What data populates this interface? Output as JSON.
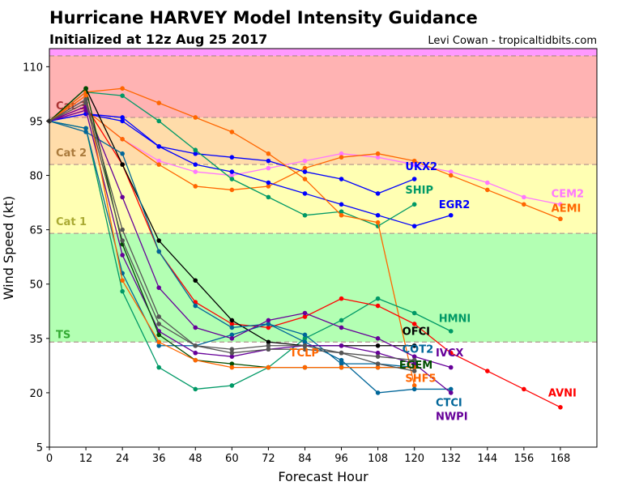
{
  "chart_data": {
    "type": "line",
    "title": "Hurricane HARVEY Model Intensity Guidance",
    "subtitle": "Initialized at 12z Aug 25 2017",
    "credit": "Levi Cowan - tropicaltidbits.com",
    "xlabel": "Forecast Hour",
    "ylabel": "Wind Speed (kt)",
    "xlim": [
      0,
      180
    ],
    "ylim": [
      5,
      115
    ],
    "xticks": [
      0,
      12,
      24,
      36,
      48,
      60,
      72,
      84,
      96,
      108,
      120,
      132,
      144,
      156,
      168
    ],
    "yticks": [
      5,
      20,
      35,
      50,
      65,
      80,
      95,
      110
    ],
    "grid": false,
    "bands": [
      {
        "label": "",
        "from": 113,
        "to": 115,
        "color": "#ff99ff",
        "label_color": "#993399"
      },
      {
        "label": "Cat 3",
        "from": 96,
        "to": 113,
        "color": "#ffb3b3",
        "label_color": "#aa3333"
      },
      {
        "label": "Cat 2",
        "from": 83,
        "to": 96,
        "color": "#ffdcaa",
        "label_color": "#aa7a3c"
      },
      {
        "label": "Cat 1",
        "from": 64,
        "to": 83,
        "color": "#ffffb3",
        "label_color": "#aaaa33"
      },
      {
        "label": "TS",
        "from": 34,
        "to": 64,
        "color": "#b3ffb3",
        "label_color": "#33aa33"
      }
    ],
    "series": [
      {
        "name": "CEM2",
        "color": "#ff77ff",
        "x": [
          0,
          12,
          24,
          36,
          48,
          60,
          72,
          84,
          96,
          108,
          120,
          132,
          144,
          156,
          168
        ],
        "y": [
          95,
          98,
          90,
          84,
          81,
          80,
          82,
          84,
          86,
          85,
          83,
          81,
          78,
          74,
          72
        ],
        "label_at": [
          165,
          74
        ]
      },
      {
        "name": "AEMI",
        "color": "#ff6600",
        "x": [
          0,
          12,
          24,
          36,
          48,
          60,
          72,
          84,
          96,
          108,
          120,
          132,
          144,
          156,
          168
        ],
        "y": [
          95,
          98,
          90,
          83,
          77,
          76,
          77,
          82,
          85,
          86,
          84,
          80,
          76,
          72,
          68
        ],
        "label_at": [
          165,
          70
        ]
      },
      {
        "name": "UKX2",
        "color": "#0000ff",
        "x": [
          0,
          12,
          24,
          36,
          48,
          60,
          72,
          84,
          96,
          108,
          120
        ],
        "y": [
          95,
          97,
          96,
          88,
          86,
          85,
          84,
          81,
          79,
          75,
          79
        ],
        "label_at": [
          117,
          81.5
        ]
      },
      {
        "name": "EGR2",
        "color": "#0000ff",
        "x": [
          0,
          12,
          24,
          36,
          48,
          60,
          72,
          84,
          96,
          108,
          120,
          132
        ],
        "y": [
          95,
          97,
          95,
          88,
          83,
          81,
          78,
          75,
          72,
          69,
          66,
          69
        ],
        "label_at": [
          128,
          71
        ]
      },
      {
        "name": "SHIP",
        "color": "#009966",
        "x": [
          0,
          12,
          24,
          36,
          48,
          60,
          72,
          84,
          96,
          108,
          120
        ],
        "y": [
          95,
          103,
          102,
          95,
          87,
          79,
          74,
          69,
          70,
          66,
          72
        ],
        "label_at": [
          117,
          75
        ]
      },
      {
        "name": "SHF5",
        "color": "#ff6600",
        "x": [
          0,
          12,
          24,
          36,
          48,
          60,
          72,
          84,
          96,
          108,
          120
        ],
        "y": [
          95,
          103,
          104,
          100,
          96,
          92,
          86,
          79,
          69,
          67,
          22
        ],
        "label_at": [
          117,
          23
        ]
      },
      {
        "name": "HMNI",
        "color": "#009966",
        "x": [
          0,
          12,
          24,
          36,
          48,
          60,
          72,
          84,
          96,
          108,
          120,
          132
        ],
        "y": [
          95,
          93,
          48,
          27,
          21,
          22,
          27,
          35,
          40,
          46,
          42,
          37
        ],
        "label_at": [
          128,
          39.5
        ]
      },
      {
        "name": "AVNI",
        "color": "#ff0000",
        "x": [
          0,
          12,
          24,
          36,
          48,
          60,
          72,
          84,
          96,
          108,
          120,
          132,
          144,
          156,
          168
        ],
        "y": [
          95,
          99,
          83,
          59,
          45,
          39,
          38,
          41,
          46,
          44,
          39,
          31,
          26,
          21,
          16
        ],
        "label_at": [
          164,
          19
        ]
      },
      {
        "name": "OFCI",
        "color": "#000000",
        "x": [
          0,
          12,
          24,
          36,
          48,
          60,
          72,
          84,
          96,
          108,
          120
        ],
        "y": [
          95,
          104,
          83,
          62,
          51,
          40,
          34,
          33,
          33,
          33,
          33
        ],
        "label_at": [
          116,
          36
        ]
      },
      {
        "name": "CTCI",
        "color": "#006699",
        "x": [
          0,
          12,
          24,
          36,
          48,
          60,
          72,
          84,
          96,
          108,
          120,
          132
        ],
        "y": [
          95,
          92,
          86,
          59,
          44,
          38,
          39,
          34,
          29,
          20,
          21,
          21
        ],
        "label_at": [
          127,
          23
        ]
      },
      {
        "name": "COT2",
        "color": "#006699",
        "x": [
          0,
          12,
          24,
          36,
          48,
          60,
          72,
          84,
          96,
          108,
          120
        ],
        "y": [
          95,
          93,
          53,
          33,
          33,
          36,
          39,
          36,
          28,
          28,
          27
        ],
        "label_at": [
          116,
          31
        ]
      },
      {
        "name": "IVCX",
        "color": "#660099",
        "x": [
          0,
          12,
          24,
          36,
          48,
          60,
          72,
          84,
          96,
          108,
          120,
          132
        ],
        "y": [
          95,
          99,
          74,
          49,
          38,
          35,
          40,
          42,
          38,
          35,
          30,
          27
        ],
        "label_at": [
          127,
          30
        ]
      },
      {
        "name": "NWPI",
        "color": "#660099",
        "x": [
          0,
          12,
          24,
          36,
          48,
          60,
          72,
          84,
          96,
          108,
          120,
          132
        ],
        "y": [
          95,
          98,
          58,
          37,
          31,
          30,
          32,
          33,
          33,
          31,
          28,
          20
        ],
        "label_at": [
          127,
          22.5
        ]
      },
      {
        "name": "EGEM",
        "color": "#004d00",
        "x": [
          0,
          12,
          24,
          36,
          48,
          60,
          72,
          84,
          96,
          108,
          120
        ],
        "y": [
          95,
          104,
          61,
          36,
          29,
          28,
          27,
          27,
          27,
          27,
          27
        ],
        "label_at": [
          115,
          30
        ]
      },
      {
        "name": "TCLP",
        "color": "#ff6600",
        "x": [
          0,
          12,
          24,
          36,
          48,
          60,
          72,
          84,
          96,
          108,
          120
        ],
        "y": [
          95,
          102,
          51,
          34,
          29,
          27,
          27,
          27,
          27,
          27,
          27
        ],
        "label_at": [
          79,
          30
        ]
      },
      {
        "name": "",
        "color": "#555555",
        "x": [
          0,
          12,
          24,
          36,
          48,
          60,
          72,
          84,
          96,
          108,
          120
        ],
        "y": [
          95,
          101,
          65,
          41,
          33,
          32,
          33,
          33,
          31,
          30,
          29
        ]
      },
      {
        "name": "",
        "color": "#555555",
        "x": [
          0,
          12,
          24,
          36,
          48,
          60,
          72,
          84,
          96,
          108,
          120
        ],
        "y": [
          95,
          100,
          62,
          39,
          33,
          31,
          32,
          32,
          31,
          28,
          26
        ]
      }
    ]
  }
}
